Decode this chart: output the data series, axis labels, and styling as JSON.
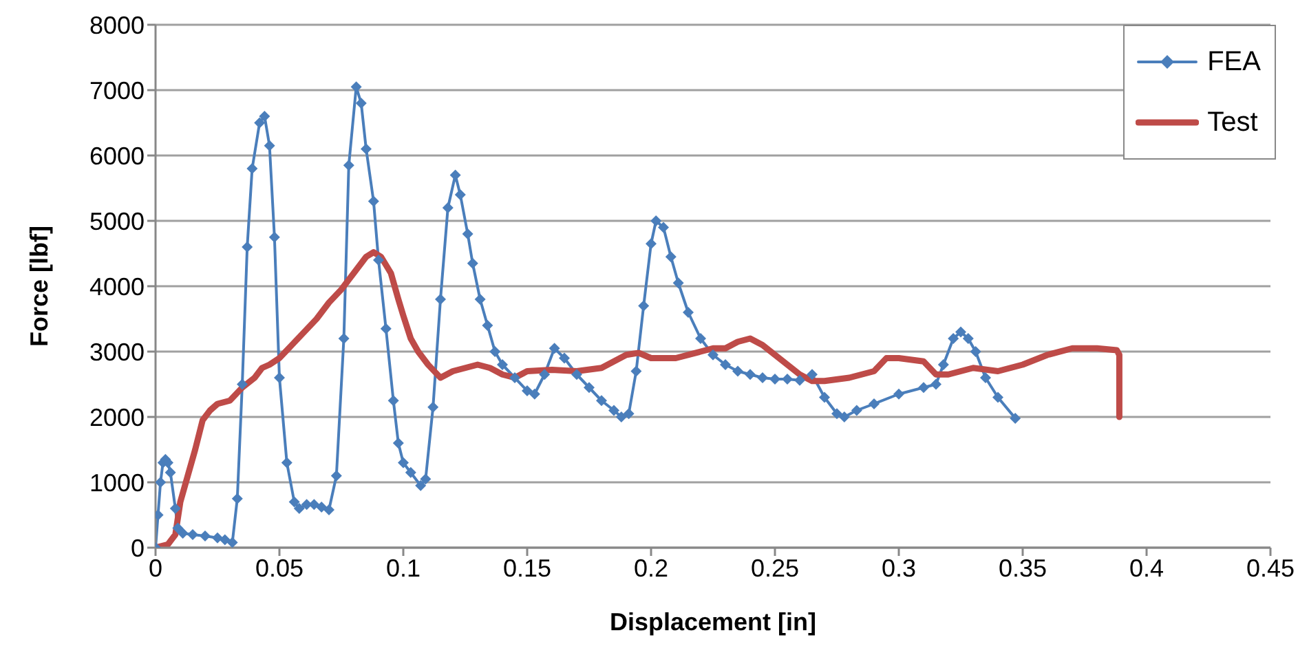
{
  "chart_data": {
    "type": "line",
    "xlabel": "Displacement [in]",
    "ylabel": "Force [lbf]",
    "xlim": [
      0,
      0.45
    ],
    "xticks": [
      0,
      0.05,
      0.1,
      0.15,
      0.2,
      0.25,
      0.3,
      0.35,
      0.4,
      0.45
    ],
    "ylim": [
      0,
      8000
    ],
    "yticks": [
      0,
      1000,
      2000,
      3000,
      4000,
      5000,
      6000,
      7000,
      8000
    ],
    "grid": "y",
    "legend": "top right",
    "series": [
      {
        "name": "FEA",
        "color": "#4a7ebb",
        "marker": "diamond",
        "x": [
          0,
          0.001,
          0.002,
          0.003,
          0.004,
          0.005,
          0.006,
          0.008,
          0.009,
          0.011,
          0.015,
          0.02,
          0.025,
          0.028,
          0.031,
          0.033,
          0.035,
          0.037,
          0.039,
          0.042,
          0.044,
          0.046,
          0.048,
          0.05,
          0.053,
          0.056,
          0.058,
          0.061,
          0.064,
          0.067,
          0.07,
          0.073,
          0.076,
          0.078,
          0.081,
          0.083,
          0.085,
          0.088,
          0.09,
          0.093,
          0.096,
          0.098,
          0.1,
          0.103,
          0.107,
          0.109,
          0.112,
          0.115,
          0.118,
          0.121,
          0.123,
          0.126,
          0.128,
          0.131,
          0.134,
          0.137,
          0.14,
          0.145,
          0.15,
          0.153,
          0.157,
          0.161,
          0.165,
          0.17,
          0.175,
          0.18,
          0.185,
          0.188,
          0.191,
          0.194,
          0.197,
          0.2,
          0.202,
          0.205,
          0.208,
          0.211,
          0.215,
          0.22,
          0.225,
          0.23,
          0.235,
          0.24,
          0.245,
          0.25,
          0.255,
          0.26,
          0.265,
          0.27,
          0.275,
          0.278,
          0.283,
          0.29,
          0.3,
          0.31,
          0.315,
          0.318,
          0.322,
          0.325,
          0.328,
          0.331,
          0.335,
          0.34,
          0.347
        ],
        "values": [
          0,
          500,
          1000,
          1300,
          1350,
          1300,
          1150,
          600,
          300,
          220,
          200,
          180,
          150,
          120,
          80,
          750,
          2500,
          4600,
          5800,
          6500,
          6600,
          6150,
          4750,
          2600,
          1300,
          700,
          600,
          660,
          660,
          620,
          580,
          1100,
          3200,
          5850,
          7050,
          6800,
          6100,
          5300,
          4400,
          3350,
          2250,
          1600,
          1300,
          1150,
          950,
          1050,
          2150,
          3800,
          5200,
          5700,
          5400,
          4800,
          4350,
          3800,
          3400,
          3000,
          2800,
          2600,
          2400,
          2350,
          2650,
          3050,
          2900,
          2650,
          2450,
          2250,
          2100,
          2000,
          2050,
          2700,
          3700,
          4650,
          5000,
          4900,
          4450,
          4050,
          3600,
          3200,
          2950,
          2800,
          2700,
          2650,
          2600,
          2580,
          2580,
          2560,
          2650,
          2300,
          2050,
          2000,
          2100,
          2200,
          2350,
          2450,
          2500,
          2800,
          3200,
          3300,
          3200,
          3000,
          2600,
          2300,
          1980
        ]
      },
      {
        "name": "Test",
        "color": "#be4b48",
        "marker": "none",
        "x": [
          0,
          0.005,
          0.008,
          0.01,
          0.013,
          0.016,
          0.019,
          0.022,
          0.025,
          0.03,
          0.035,
          0.04,
          0.043,
          0.046,
          0.05,
          0.055,
          0.06,
          0.065,
          0.07,
          0.075,
          0.08,
          0.085,
          0.088,
          0.091,
          0.095,
          0.098,
          0.1,
          0.103,
          0.106,
          0.11,
          0.115,
          0.12,
          0.125,
          0.13,
          0.135,
          0.14,
          0.145,
          0.15,
          0.16,
          0.17,
          0.18,
          0.19,
          0.195,
          0.2,
          0.21,
          0.22,
          0.225,
          0.23,
          0.235,
          0.24,
          0.245,
          0.25,
          0.255,
          0.26,
          0.265,
          0.27,
          0.28,
          0.29,
          0.295,
          0.3,
          0.31,
          0.315,
          0.32,
          0.33,
          0.34,
          0.35,
          0.36,
          0.37,
          0.38,
          0.388,
          0.389,
          0.389
        ],
        "values": [
          0,
          50,
          200,
          700,
          1100,
          1500,
          1950,
          2100,
          2200,
          2250,
          2450,
          2600,
          2750,
          2800,
          2900,
          3100,
          3300,
          3500,
          3750,
          3950,
          4200,
          4450,
          4520,
          4450,
          4200,
          3800,
          3550,
          3200,
          3000,
          2800,
          2600,
          2700,
          2750,
          2800,
          2750,
          2650,
          2600,
          2700,
          2720,
          2700,
          2750,
          2950,
          2980,
          2900,
          2900,
          3000,
          3050,
          3050,
          3150,
          3200,
          3100,
          2950,
          2800,
          2650,
          2550,
          2550,
          2600,
          2700,
          2900,
          2900,
          2850,
          2650,
          2650,
          2750,
          2700,
          2800,
          2950,
          3050,
          3050,
          3020,
          2950,
          2000
        ]
      }
    ]
  }
}
